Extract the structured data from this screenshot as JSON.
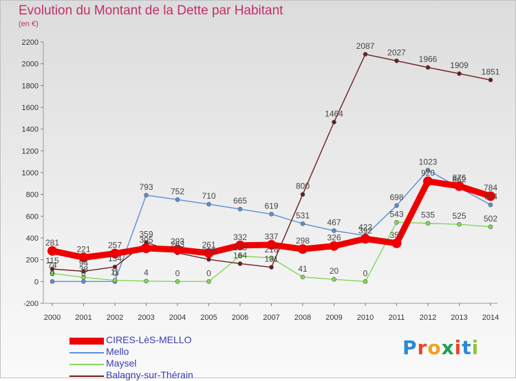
{
  "header": {
    "title": "Evolution du Montant de la Dette par Habitant",
    "unit": "(en €)"
  },
  "logo": {
    "letters": [
      "P",
      "r",
      "o",
      "x",
      "i",
      "t",
      "i"
    ],
    "colors": [
      "#2a8ad6",
      "#e8452c",
      "#f0a020",
      "#1f9f4f",
      "#e8452c",
      "#2a8ad6",
      "#8cc63f"
    ]
  },
  "chart_data": {
    "type": "line",
    "title": "Evolution du Montant de la Dette par Habitant",
    "subtitle": "(en €)",
    "x": [
      "2000",
      "2001",
      "2002",
      "2003",
      "2004",
      "2005",
      "2006",
      "2007",
      "2008",
      "2009",
      "2010",
      "2011",
      "2012",
      "2013",
      "2014"
    ],
    "ylim": [
      -200,
      2200
    ],
    "yticks": [
      -200,
      0,
      200,
      400,
      600,
      800,
      1000,
      1200,
      1400,
      1600,
      1800,
      2000,
      2200
    ],
    "grid": false,
    "legend_position": "bottom-left",
    "series": [
      {
        "name": "CIRES-LèS-MELLO",
        "color": "#ee0000",
        "values": [
          281,
          221,
          257,
          305,
          293,
          261,
          332,
          337,
          298,
          326,
          392,
          351,
          920,
          876,
          784
        ],
        "labels": [
          "281",
          "221",
          "257",
          "305",
          "293",
          "261",
          "332",
          "337",
          "298",
          "326",
          "392",
          "351",
          "920",
          "876",
          "784"
        ]
      },
      {
        "name": "Mello",
        "color": "#5b8fd6",
        "values": [
          0,
          0,
          0,
          793,
          752,
          710,
          665,
          619,
          531,
          467,
          422,
          698,
          1023,
          862,
          704
        ],
        "labels": [
          "0",
          "0",
          "0",
          "793",
          "752",
          "710",
          "665",
          "619",
          "531",
          "467",
          "422",
          "698",
          "1023",
          "862",
          "704"
        ]
      },
      {
        "name": "Maysel",
        "color": "#7ed957",
        "values": [
          74,
          38,
          11,
          4,
          0,
          0,
          235,
          216,
          41,
          20,
          0,
          543,
          535,
          525,
          502
        ],
        "labels": [
          "74",
          "38",
          "11",
          "4",
          "0",
          "0",
          "235",
          "216",
          "41",
          "20",
          "0",
          "543",
          "535",
          "525",
          "502"
        ]
      },
      {
        "name": "Balagny-sur-Thérain",
        "color": "#6b1c1c",
        "values": [
          115,
          94,
          134,
          359,
          263,
          203,
          164,
          131,
          800,
          1464,
          2087,
          2027,
          1966,
          1909,
          1851
        ],
        "labels": [
          "115",
          "94",
          "134",
          "359",
          "263",
          "203",
          "164",
          "131",
          "800",
          "1464",
          "2087",
          "2027",
          "1966",
          "1909",
          "1851"
        ]
      }
    ]
  }
}
